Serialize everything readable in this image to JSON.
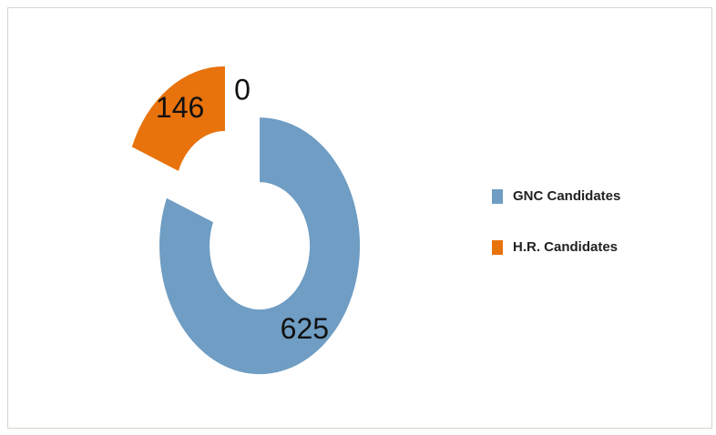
{
  "chart_data": {
    "type": "donut",
    "categories": [
      "GNC Candidates",
      "H.R. Candidates",
      null
    ],
    "values": [
      625,
      146,
      0
    ],
    "colors": [
      "#6f9dc3",
      "#e8720c",
      "#a5a5a5"
    ],
    "legend": "right"
  }
}
